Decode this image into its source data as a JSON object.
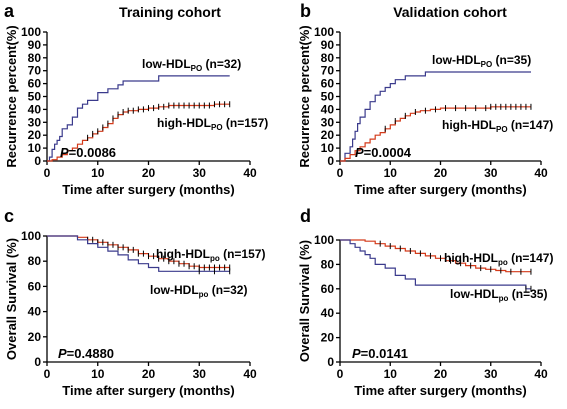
{
  "chart_data": [
    {
      "type": "line",
      "panel": "a",
      "title": "Training cohort",
      "xlabel": "Time after surgery (months)",
      "ylabel": "Recurrence percent(%)",
      "xlim": [
        0,
        40
      ],
      "ylim": [
        0,
        100
      ],
      "xticks": [
        "0",
        "10",
        "20",
        "30",
        "40"
      ],
      "yticks": [
        "0",
        "10",
        "20",
        "30",
        "40",
        "50",
        "60",
        "70",
        "80",
        "90",
        "100"
      ],
      "pvalue_prefix": "P",
      "pvalue_text": "=0.0086",
      "series": [
        {
          "name": "low-HDLPO (n=32)",
          "name_base": "low-HDL",
          "name_sub": "PO",
          "name_tail": " (n=32)",
          "color": "#3a3a8c",
          "x": [
            0,
            0.5,
            1,
            1.5,
            2,
            2.5,
            3,
            4,
            5,
            6,
            7,
            8,
            10,
            12,
            14,
            15,
            17,
            19,
            22,
            23,
            36
          ],
          "y": [
            0,
            3,
            9,
            13,
            16,
            19,
            25,
            28,
            34,
            41,
            44,
            47,
            53,
            56,
            59,
            62,
            62,
            62,
            66,
            66,
            66
          ],
          "censor_x": []
        },
        {
          "name": "high-HDLPO (n=157)",
          "name_base": "high-HDL",
          "name_sub": "PO",
          "name_tail": " (n=157)",
          "color": "#d43a1a",
          "x": [
            0,
            1,
            2,
            3,
            4,
            5,
            6,
            7,
            8,
            9,
            10,
            11,
            12,
            13,
            14,
            15,
            16,
            18,
            20,
            22,
            24,
            27,
            30,
            33,
            36
          ],
          "y": [
            0,
            1,
            3,
            5,
            8,
            10,
            13,
            16,
            18,
            21,
            23,
            26,
            29,
            33,
            36,
            38,
            39,
            40,
            41,
            42,
            43,
            43,
            43,
            44,
            44
          ],
          "censor_x": [
            8,
            9,
            10,
            11,
            12,
            13,
            14,
            15,
            16,
            17,
            18,
            19,
            20,
            21,
            22,
            23,
            24,
            25,
            26,
            27,
            28,
            29,
            30,
            31,
            32,
            33,
            34,
            35,
            36
          ]
        }
      ]
    },
    {
      "type": "line",
      "panel": "b",
      "title": "Validation cohort",
      "xlabel": "Time after surgery (months)",
      "ylabel": "Recurrence percent(%)",
      "xlim": [
        0,
        40
      ],
      "ylim": [
        0,
        100
      ],
      "xticks": [
        "0",
        "10",
        "20",
        "30",
        "40"
      ],
      "yticks": [
        "0",
        "10",
        "20",
        "30",
        "40",
        "50",
        "60",
        "70",
        "80",
        "90",
        "100"
      ],
      "pvalue_prefix": "P",
      "pvalue_text": "=0.0004",
      "series": [
        {
          "name": "low-HDLPO (n=35)",
          "name_base": "low-HDL",
          "name_sub": "PO",
          "name_tail": " (n=35)",
          "color": "#3a3a8c",
          "x": [
            0,
            1,
            2,
            2.5,
            3,
            3.5,
            4,
            5,
            6,
            7,
            8,
            9,
            10,
            11,
            13,
            15,
            17,
            22,
            38
          ],
          "y": [
            0,
            6,
            11,
            17,
            23,
            29,
            34,
            40,
            46,
            51,
            54,
            57,
            60,
            63,
            66,
            66,
            69,
            69,
            69
          ],
          "censor_x": []
        },
        {
          "name": "high-HDLPO (n=147)",
          "name_base": "high-HDL",
          "name_sub": "PO",
          "name_tail": " (n=147)",
          "color": "#d43a1a",
          "x": [
            0,
            1,
            2,
            3,
            4,
            5,
            6,
            7,
            8,
            9,
            10,
            11,
            12,
            13,
            14,
            15,
            16,
            18,
            20,
            25,
            30,
            38
          ],
          "y": [
            0,
            2,
            5,
            8,
            11,
            14,
            17,
            20,
            22,
            25,
            28,
            31,
            33,
            35,
            37,
            38,
            39,
            40,
            41,
            41,
            42,
            42
          ],
          "censor_x": [
            9,
            11,
            13,
            15,
            17,
            19,
            21,
            23,
            25,
            27,
            29,
            30,
            31,
            32,
            33,
            34,
            35,
            36,
            37,
            38
          ]
        }
      ]
    },
    {
      "type": "line",
      "panel": "c",
      "title": "",
      "xlabel": "Time after surgery (months)",
      "ylabel": "Overall Survival (%)",
      "xlim": [
        0,
        40
      ],
      "ylim": [
        0,
        100
      ],
      "xticks": [
        "0",
        "10",
        "20",
        "30",
        "40"
      ],
      "yticks": [
        "0",
        "20",
        "40",
        "60",
        "80",
        "100"
      ],
      "pvalue_prefix": "P",
      "pvalue_text": "=0.4880",
      "series": [
        {
          "name": "high-HDLpo (n=157)",
          "name_base": "high-HDL",
          "name_sub": "po",
          "name_tail": " (n=157)",
          "color": "#d43a1a",
          "x": [
            0,
            6,
            8,
            10,
            12,
            14,
            16,
            18,
            20,
            22,
            24,
            26,
            28,
            30,
            32,
            36
          ],
          "y": [
            100,
            99,
            97,
            95,
            93,
            91,
            89,
            86,
            84,
            82,
            80,
            78,
            76,
            75,
            75,
            75
          ],
          "censor_x": [
            8,
            9,
            10,
            11,
            12,
            13,
            14,
            15,
            16,
            17,
            18,
            19,
            20,
            21,
            22,
            23,
            24,
            25,
            26,
            27,
            28,
            29,
            30,
            31,
            32,
            33,
            34,
            35,
            36
          ]
        },
        {
          "name": "low-HDLpo (n=32)",
          "name_base": "low-HDL",
          "name_sub": "po",
          "name_tail": " (n=32)",
          "color": "#3a3a8c",
          "x": [
            0,
            6,
            8,
            10,
            12,
            14,
            16,
            18,
            20,
            22,
            30,
            36
          ],
          "y": [
            100,
            97,
            94,
            91,
            88,
            85,
            81,
            78,
            75,
            72,
            72,
            72
          ],
          "censor_x": [
            30,
            33,
            36
          ]
        }
      ]
    },
    {
      "type": "line",
      "panel": "d",
      "title": "",
      "xlabel": "Time after surgery (months)",
      "ylabel": "Overall Survival (%)",
      "xlim": [
        0,
        40
      ],
      "ylim": [
        0,
        100
      ],
      "xticks": [
        "0",
        "10",
        "20",
        "30",
        "40"
      ],
      "yticks": [
        "0",
        "20",
        "40",
        "60",
        "80",
        "100"
      ],
      "pvalue_prefix": "P",
      "pvalue_text": "=0.0141",
      "series": [
        {
          "name": "high-HDLpo (n=147)",
          "name_base": "high-HDL",
          "name_sub": "po",
          "name_tail": " (n=147)",
          "color": "#d43a1a",
          "x": [
            0,
            5,
            7,
            9,
            11,
            13,
            15,
            17,
            19,
            21,
            23,
            25,
            27,
            29,
            31,
            33,
            38
          ],
          "y": [
            100,
            99,
            97,
            95,
            93,
            91,
            89,
            87,
            85,
            83,
            81,
            79,
            77,
            76,
            75,
            74,
            74
          ],
          "censor_x": [
            8,
            10,
            12,
            14,
            16,
            18,
            20,
            22,
            24,
            26,
            28,
            30,
            32,
            34,
            36,
            38
          ]
        },
        {
          "name": "low-HDLpo (n=35)",
          "name_base": "low-HDL",
          "name_sub": "po",
          "name_tail": " (n=35)",
          "color": "#3a3a8c",
          "x": [
            0,
            2,
            3,
            4,
            5,
            6,
            7,
            9,
            11,
            13,
            15,
            20,
            25,
            30,
            37,
            38
          ],
          "y": [
            100,
            97,
            94,
            91,
            88,
            85,
            80,
            77,
            71,
            68,
            63,
            63,
            63,
            63,
            60,
            60
          ],
          "censor_x": [
            37,
            38
          ]
        }
      ]
    }
  ]
}
